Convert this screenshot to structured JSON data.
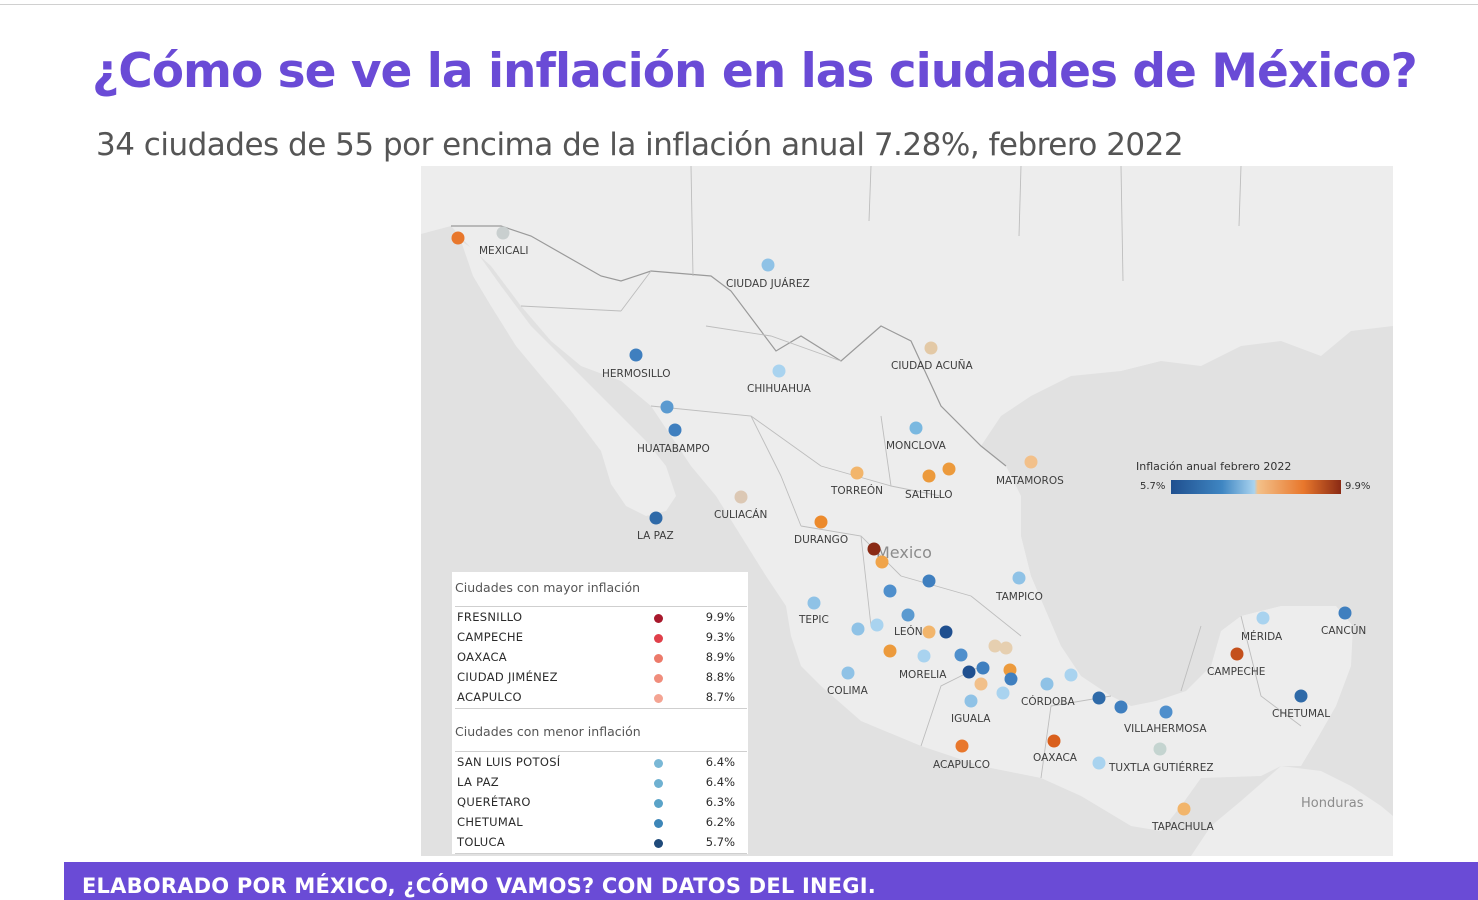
{
  "title": "¿Cómo se ve la inflación en las ciudades de México?",
  "subtitle": "34 ciudades de 55 por encima de la inflación anual 7.28%, febrero 2022",
  "footer": "ELABORADO POR MÉXICO, ¿CÓMO VAMOS? CON DATOS DEL INEGI.",
  "map": {
    "country_labels": [
      "Mexico",
      "Honduras"
    ],
    "city_labels": [
      "MEXICALI",
      "CIUDAD JUÁREZ",
      "HERMOSILLO",
      "CHIHUAHUA",
      "CIUDAD ACUÑA",
      "HUATABAMPO",
      "MONCLOVA",
      "TORREÓN",
      "SALTILLO",
      "MATAMOROS",
      "CULIACÁN",
      "LA PAZ",
      "DURANGO",
      "TAMPICO",
      "TEPIC",
      "LEÓN",
      "MORELIA",
      "COLIMA",
      "IGUALA",
      "CÓRDOBA",
      "VILLAHERMOSA",
      "MÉRIDA",
      "CANCÚN",
      "CAMPECHE",
      "CHETUMAL",
      "ACAPULCO",
      "OAXACA",
      "TUXTLA GUTIÉRREZ",
      "TAPACHULA"
    ]
  },
  "legend": {
    "title": "Inflación anual febrero 2022",
    "min": "5.7%",
    "max": "9.9%",
    "min_color": "#1f4f8f",
    "max_color": "#8a2a14"
  },
  "table": {
    "high_heading": "Ciudades con mayor inflación",
    "high": [
      {
        "city": "FRESNILLO",
        "value": "9.9%",
        "color": "#a8182c"
      },
      {
        "city": "CAMPECHE",
        "value": "9.3%",
        "color": "#e0404a"
      },
      {
        "city": "OAXACA",
        "value": "8.9%",
        "color": "#ec7a6a"
      },
      {
        "city": "CIUDAD JIMÉNEZ",
        "value": "8.8%",
        "color": "#f08d7c"
      },
      {
        "city": "ACAPULCO",
        "value": "8.7%",
        "color": "#f4a493"
      }
    ],
    "low_heading": "Ciudades con menor inflación",
    "low": [
      {
        "city": "SAN LUIS POTOSÍ",
        "value": "6.4%",
        "color": "#7ab8d6"
      },
      {
        "city": "LA PAZ",
        "value": "6.4%",
        "color": "#6fb1d1"
      },
      {
        "city": "QUERÉTARO",
        "value": "6.3%",
        "color": "#5aa3c8"
      },
      {
        "city": "CHETUMAL",
        "value": "6.2%",
        "color": "#3d86b8"
      },
      {
        "city": "TOLUCA",
        "value": "5.7%",
        "color": "#1f4a7a"
      }
    ]
  }
}
